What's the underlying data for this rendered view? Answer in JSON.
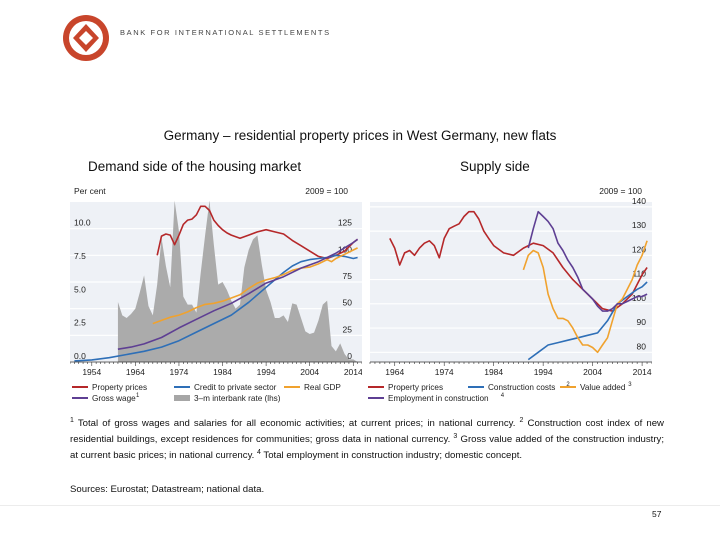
{
  "header": {
    "bank_name": "BANK FOR INTERNATIONAL SETTLEMENTS",
    "logo_color": "#c8452b"
  },
  "title": "Germany – residential property prices in West Germany, new flats",
  "chart_data": [
    {
      "type": "line",
      "title": "Demand side of the housing market",
      "left_axis_unit": "Per cent",
      "right_axis_unit": "2009 = 100",
      "left_ylim": [
        0,
        12
      ],
      "right_ylim": [
        0,
        150
      ],
      "left_ticks": [
        "0.0",
        "2.5",
        "5.0",
        "7.5",
        "10.0"
      ],
      "right_ticks": [
        "0",
        "25",
        "50",
        "75",
        "100",
        "125"
      ],
      "xlim": [
        1949,
        2016
      ],
      "x_ticks": [
        "1954",
        "1964",
        "1974",
        "1984",
        "1994",
        "2004",
        "2014"
      ],
      "series": [
        {
          "name": "Property prices",
          "legend": "Property prices",
          "sup": "",
          "axis": "right",
          "color": "#b5282a",
          "x": [
            1969,
            1970,
            1971,
            1972,
            1973,
            1974,
            1975,
            1976,
            1977,
            1978,
            1979,
            1980,
            1981,
            1982,
            1983,
            1984,
            1985,
            1986,
            1988,
            1990,
            1992,
            1994,
            1996,
            1998,
            2000,
            2002,
            2004,
            2006,
            2008,
            2010,
            2012,
            2014,
            2015
          ],
          "values": [
            100,
            118,
            120,
            119,
            110,
            119,
            129,
            133,
            134,
            138,
            146,
            146,
            142,
            133,
            128,
            124,
            121,
            119,
            116,
            119,
            122,
            124,
            122,
            120,
            114,
            109,
            104,
            99,
            97,
            100,
            104,
            112,
            115
          ]
        },
        {
          "name": "Credit to private sector",
          "legend": "Credit to private sector",
          "sup": "",
          "axis": "right",
          "color": "#2e6fb7",
          "x": [
            1950,
            1954,
            1958,
            1962,
            1966,
            1970,
            1974,
            1978,
            1982,
            1986,
            1990,
            1994,
            1998,
            2000,
            2002,
            2004,
            2006,
            2008,
            2010,
            2012,
            2014,
            2015
          ],
          "values": [
            1,
            2,
            4,
            7,
            10,
            14,
            20,
            28,
            36,
            44,
            56,
            70,
            84,
            90,
            94,
            96,
            97,
            98,
            100,
            99,
            97,
            98
          ]
        },
        {
          "name": "Real GDP",
          "legend": "Real GDP",
          "sup": "",
          "axis": "right",
          "color": "#f0a22e",
          "x": [
            1968,
            1970,
            1972,
            1974,
            1976,
            1978,
            1980,
            1982,
            1984,
            1986,
            1988,
            1990,
            1992,
            1994,
            1996,
            1998,
            2000,
            2002,
            2004,
            2006,
            2008,
            2009,
            2010,
            2012,
            2014,
            2015
          ],
          "values": [
            36,
            39,
            42,
            44,
            47,
            51,
            54,
            55,
            57,
            60,
            63,
            69,
            74,
            77,
            79,
            82,
            86,
            88,
            89,
            92,
            96,
            94,
            97,
            101,
            105,
            107
          ]
        },
        {
          "name": "Gross wage",
          "legend": "Gross wage",
          "sup": "1",
          "axis": "right",
          "color": "#5e3f93",
          "x": [
            1960,
            1963,
            1966,
            1970,
            1974,
            1978,
            1982,
            1986,
            1990,
            1994,
            1998,
            2002,
            2006,
            2010,
            2014,
            2015
          ],
          "values": [
            12,
            14,
            17,
            23,
            32,
            40,
            48,
            55,
            64,
            74,
            80,
            88,
            94,
            102,
            112,
            115
          ]
        },
        {
          "name": "3-m interbank rate",
          "legend": "3–m interbank rate (lhs)",
          "sup": "",
          "axis": "left",
          "color": "#a6a6a6",
          "kind": "area",
          "x": [
            1960,
            1961,
            1962,
            1963,
            1964,
            1965,
            1966,
            1967,
            1968,
            1969,
            1970,
            1971,
            1972,
            1973,
            1974,
            1975,
            1976,
            1977,
            1978,
            1979,
            1980,
            1981,
            1982,
            1983,
            1984,
            1985,
            1986,
            1987,
            1988,
            1989,
            1990,
            1991,
            1992,
            1993,
            1994,
            1995,
            1996,
            1997,
            1998,
            1999,
            2000,
            2001,
            2002,
            2003,
            2004,
            2005,
            2006,
            2007,
            2008,
            2009,
            2010,
            2011,
            2012,
            2013,
            2014,
            2015
          ],
          "values": [
            4.5,
            3.5,
            3.3,
            3.6,
            4.0,
            5.2,
            6.5,
            4.2,
            3.5,
            5.8,
            9.3,
            7.2,
            5.6,
            12.1,
            9.8,
            4.9,
            4.3,
            4.3,
            3.7,
            6.7,
            9.5,
            12.1,
            8.8,
            5.8,
            6.0,
            5.4,
            4.6,
            4.0,
            4.3,
            7.1,
            8.4,
            9.2,
            9.5,
            7.3,
            5.4,
            4.5,
            3.3,
            3.3,
            3.5,
            3.0,
            4.4,
            4.3,
            3.3,
            2.3,
            2.1,
            2.2,
            3.1,
            4.3,
            4.6,
            1.2,
            0.8,
            1.4,
            0.6,
            0.2,
            0.2,
            0.0
          ]
        }
      ]
    },
    {
      "type": "line",
      "title": "Supply side",
      "right_axis_unit": "2009 = 100",
      "right_ylim": [
        76,
        142
      ],
      "right_ticks": [
        "80",
        "90",
        "100",
        "110",
        "120",
        "130",
        "140"
      ],
      "xlim": [
        1959,
        2016
      ],
      "x_ticks": [
        "1964",
        "1974",
        "1984",
        "1994",
        "2004",
        "2014"
      ],
      "series": [
        {
          "name": "Property prices",
          "legend": "Property prices",
          "sup": "",
          "color": "#b5282a",
          "x": [
            1963,
            1964,
            1965,
            1966,
            1967,
            1968,
            1969,
            1970,
            1971,
            1972,
            1973,
            1974,
            1975,
            1976,
            1977,
            1978,
            1979,
            1980,
            1981,
            1982,
            1983,
            1984,
            1986,
            1988,
            1990,
            1992,
            1994,
            1996,
            1998,
            2000,
            2002,
            2004,
            2006,
            2008,
            2010,
            2012,
            2014,
            2015
          ],
          "values": [
            127,
            123,
            116,
            121,
            122,
            120,
            123,
            125,
            126,
            124,
            119,
            127,
            131,
            132,
            133,
            136,
            138,
            138,
            135,
            130,
            127,
            124,
            121,
            120,
            123,
            125,
            124,
            121,
            115,
            110,
            106,
            102,
            98,
            97,
            100,
            104,
            112,
            115
          ]
        },
        {
          "name": "Construction costs",
          "legend": "Construction costs",
          "sup": "2",
          "color": "#2e6fb7",
          "x": [
            1991,
            1993,
            1995,
            1997,
            1999,
            2001,
            2003,
            2005,
            2007,
            2009,
            2011,
            2013,
            2014,
            2015
          ],
          "values": [
            77,
            80,
            83,
            84,
            85,
            86,
            87,
            88,
            93,
            100,
            103,
            106,
            107,
            109
          ]
        },
        {
          "name": "Value added",
          "legend": "Value added",
          "sup": "3",
          "color": "#f0a22e",
          "x": [
            1990,
            1991,
            1992,
            1993,
            1994,
            1995,
            1996,
            1997,
            1998,
            1999,
            2000,
            2001,
            2002,
            2003,
            2004,
            2005,
            2006,
            2007,
            2008,
            2009,
            2010,
            2011,
            2012,
            2013,
            2014,
            2015
          ],
          "values": [
            114,
            120,
            122,
            121,
            115,
            104,
            98,
            94,
            94,
            93,
            90,
            86,
            83,
            83,
            82,
            80,
            83,
            86,
            93,
            100,
            102,
            106,
            110,
            116,
            120,
            126
          ]
        },
        {
          "name": "Employment in construction",
          "legend": "Employment in construction",
          "sup": "4",
          "color": "#5e3f93",
          "x": [
            1991,
            1992,
            1993,
            1994,
            1995,
            1996,
            1997,
            1998,
            1999,
            2000,
            2001,
            2002,
            2003,
            2004,
            2005,
            2006,
            2007,
            2008,
            2009,
            2010,
            2011,
            2012,
            2013,
            2014,
            2015
          ],
          "values": [
            123,
            131,
            138,
            136,
            134,
            131,
            125,
            122,
            118,
            115,
            111,
            106,
            104,
            102,
            99,
            97,
            97,
            98,
            100,
            100,
            101,
            102,
            103,
            103,
            104
          ]
        }
      ]
    }
  ],
  "footnotes": {
    "n1_mark": "1",
    "n1": "Total of gross wages and salaries for all economic activities; at current prices; in national currency.",
    "n2_mark": "2",
    "n2": "Construction cost index of new residential buildings, except residences for communities; gross data in national currency.",
    "n3_mark": "3",
    "n3": "Gross value added of the construction industry; at current basic prices; in national currency.",
    "n4_mark": "4",
    "n4": "Total employment in construction industry; domestic concept."
  },
  "sources": "Sources: Eurostat; Datastream; national data.",
  "page_number": "57"
}
